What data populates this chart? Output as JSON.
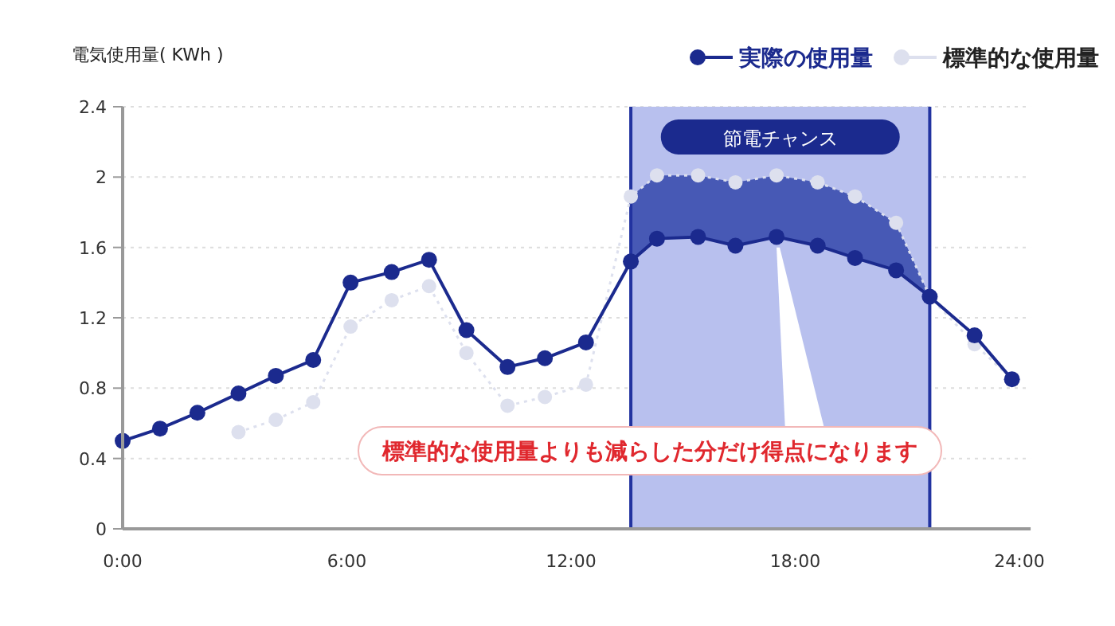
{
  "chart_data": {
    "type": "line",
    "ylabel": "電気使用量( KWh )",
    "xlim": [
      0,
      24.3
    ],
    "ylim": [
      0,
      2.4
    ],
    "xticks": [
      {
        "value": 0,
        "label": "0:00"
      },
      {
        "value": 6,
        "label": "6:00"
      },
      {
        "value": 12,
        "label": "12:00"
      },
      {
        "value": 18,
        "label": "18:00"
      },
      {
        "value": 24,
        "label": "24:00"
      }
    ],
    "yticks": [
      0,
      0.4,
      0.8,
      1.2,
      1.6,
      2.0,
      {
        "value": 2.4,
        "label": "2.4"
      }
    ],
    "grid": "y",
    "legend": "top right",
    "marker": "circle",
    "series": [
      {
        "name": "実際の使用量",
        "color": "#1b2a8e",
        "line_style": "solid",
        "x": [
          0,
          1,
          2,
          3.1,
          4.1,
          5.1,
          6.1,
          7.2,
          8.2,
          9.2,
          10.3,
          11.3,
          12.4,
          13.6,
          14.3,
          15.4,
          16.4,
          17.5,
          18.6,
          19.6,
          20.7,
          21.6,
          22.8,
          23.8
        ],
        "values": [
          0.5,
          0.57,
          0.66,
          0.77,
          0.87,
          0.96,
          1.4,
          1.46,
          1.53,
          1.13,
          0.92,
          0.97,
          1.06,
          1.52,
          1.65,
          1.66,
          1.61,
          1.66,
          1.61,
          1.54,
          1.47,
          1.32,
          1.1,
          0.85
        ]
      },
      {
        "name": "標準的な使用量",
        "color": "#dde0ee",
        "line_style": "dotted",
        "x": [
          3.1,
          4.1,
          5.1,
          6.1,
          7.2,
          8.2,
          9.2,
          10.3,
          11.3,
          12.4,
          13.6,
          14.3,
          15.4,
          16.4,
          17.5,
          18.6,
          19.6,
          20.7,
          21.6,
          22.8,
          23.8
        ],
        "values": [
          0.55,
          0.62,
          0.72,
          1.15,
          1.3,
          1.38,
          1.0,
          0.7,
          0.75,
          0.82,
          1.89,
          2.01,
          2.01,
          1.97,
          2.01,
          1.97,
          1.89,
          1.74,
          1.32,
          1.05,
          0.85
        ]
      }
    ],
    "ref_lines": [
      {
        "axis": "x",
        "value": 13.6,
        "color": "#2233a0"
      },
      {
        "axis": "x",
        "value": 21.6,
        "color": "#2233a0"
      }
    ],
    "bands": [
      {
        "axis": "x",
        "from": 13.6,
        "to": 21.6,
        "label": "節電チャンス",
        "color": "#b8c0ee"
      }
    ],
    "annotations": [
      {
        "text": "標準的な使用量よりも減らした分だけ得点になります",
        "x": 17.5,
        "y": 1.6
      }
    ]
  }
}
